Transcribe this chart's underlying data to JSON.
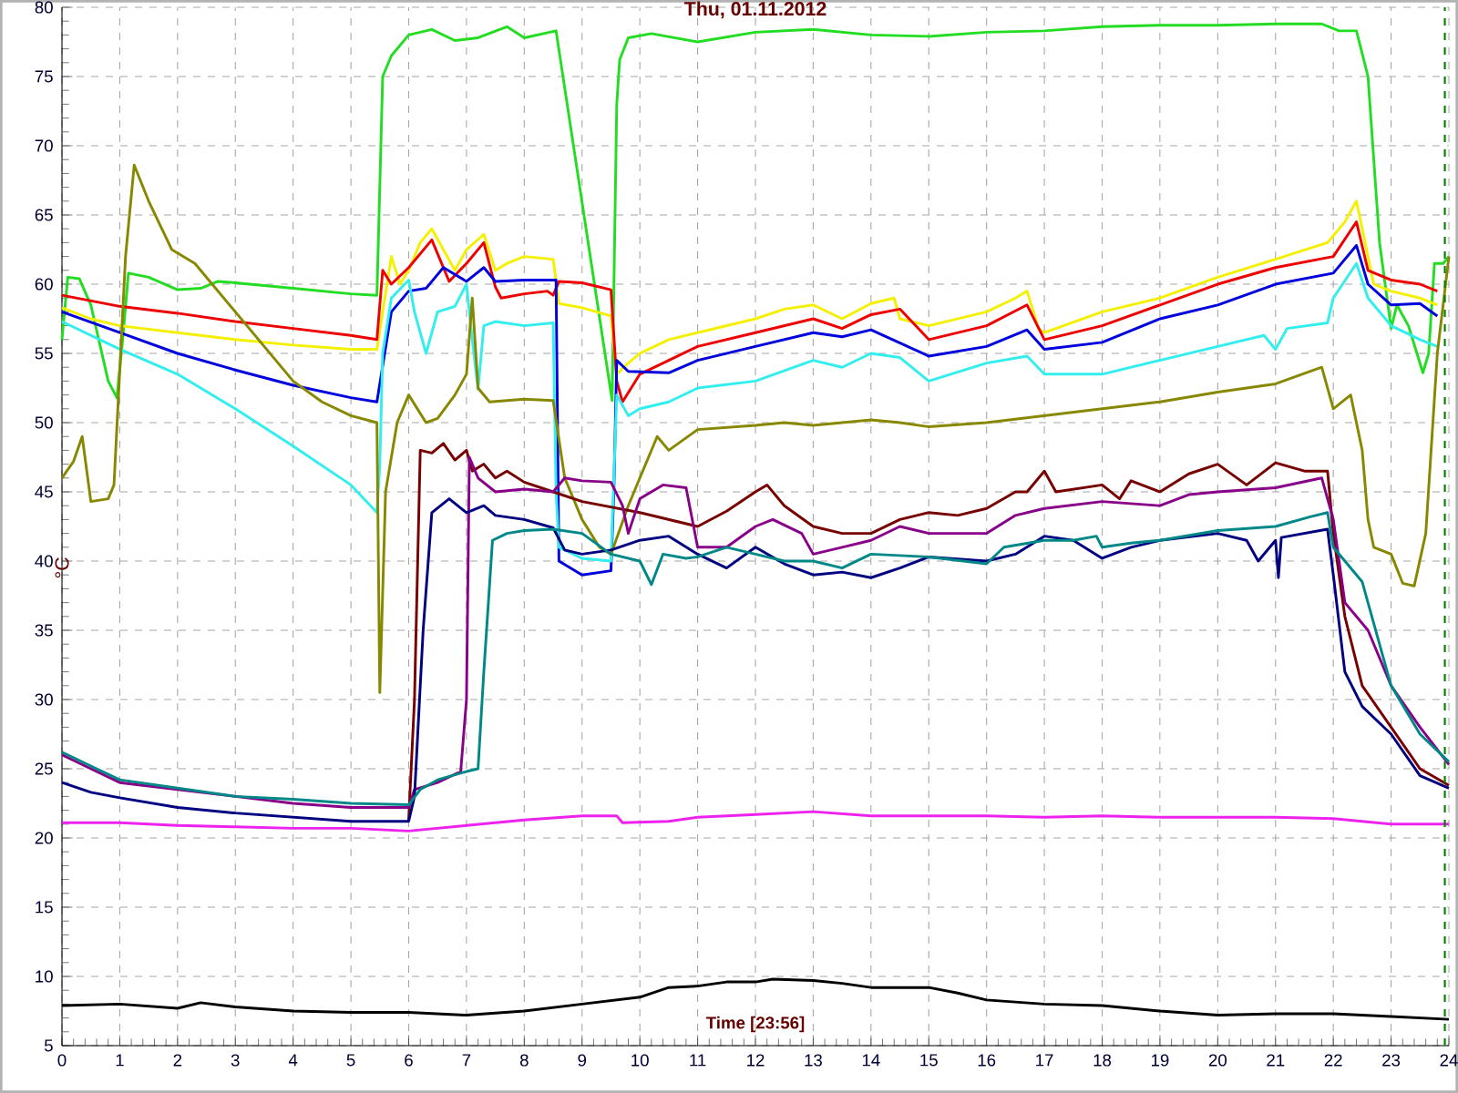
{
  "chart_data": {
    "type": "line",
    "title": "Thu, 01.11.2012",
    "xlabel": "Time [23:56]",
    "ylabel": "°C",
    "xlim": [
      0,
      24
    ],
    "ylim": [
      5,
      80
    ],
    "xticks": [
      0,
      1,
      2,
      3,
      4,
      5,
      6,
      7,
      8,
      9,
      10,
      11,
      12,
      13,
      14,
      15,
      16,
      17,
      18,
      19,
      20,
      21,
      22,
      23,
      24
    ],
    "yticks": [
      5,
      10,
      15,
      20,
      25,
      30,
      35,
      40,
      45,
      50,
      55,
      60,
      65,
      70,
      75,
      80
    ],
    "grid": true,
    "line_style": "solid",
    "marker": "none",
    "ref_lines": [
      {
        "axis": "x",
        "value": 23.93,
        "color": "#008000",
        "line_style": "dashed"
      }
    ],
    "series": [
      {
        "color": "#22dd22",
        "x": [
          0,
          0.1,
          0.3,
          0.5,
          0.8,
          0.95,
          1.05,
          1.15,
          1.5,
          2,
          2.4,
          2.7,
          3,
          4,
          5,
          5.45,
          5.55,
          5.7,
          6,
          6.4,
          6.8,
          7.2,
          7.7,
          8,
          8.55,
          9.52,
          9.6,
          9.65,
          9.8,
          10.2,
          11,
          12,
          13,
          14,
          15,
          16,
          17,
          18,
          19,
          20,
          21,
          21.8,
          22.1,
          22.4,
          22.6,
          22.8,
          23,
          23.1,
          23.3,
          23.55,
          23.65,
          23.75,
          23.9,
          24
        ],
        "values": [
          56,
          60.5,
          60.4,
          58.5,
          53,
          51.8,
          56,
          60.8,
          60.5,
          59.6,
          59.7,
          60.2,
          60.1,
          59.7,
          59.3,
          59.2,
          75,
          76.5,
          78,
          78.4,
          77.6,
          77.8,
          78.6,
          77.8,
          78.3,
          51.6,
          73,
          76.2,
          77.8,
          78.1,
          77.5,
          78.2,
          78.4,
          78,
          77.9,
          78.2,
          78.3,
          78.6,
          78.7,
          78.7,
          78.8,
          78.8,
          78.3,
          78.3,
          75,
          63,
          56.8,
          58.5,
          57,
          53.6,
          55,
          61.5,
          61.5,
          62
        ]
      },
      {
        "color": "#f5f000",
        "x": [
          0,
          0.5,
          1,
          2,
          3,
          4,
          5,
          5.45,
          5.55,
          5.7,
          5.85,
          6,
          6.2,
          6.4,
          6.6,
          6.8,
          7,
          7.3,
          7.5,
          7.7,
          8,
          8.5,
          8.6,
          9,
          9.5,
          9.6,
          9.8,
          10,
          10.5,
          11,
          12,
          12.5,
          13,
          13.5,
          14,
          14.4,
          14.5,
          15,
          16,
          16.5,
          16.7,
          16.9,
          17,
          18,
          19,
          20,
          21,
          21.9,
          22.2,
          22.4,
          22.7,
          23,
          23.5,
          23.8
        ],
        "values": [
          58.3,
          57.5,
          57,
          56.5,
          56,
          55.6,
          55.3,
          55.3,
          58,
          62,
          60,
          61,
          63,
          64,
          62.5,
          61,
          62.5,
          63.6,
          61,
          61.5,
          62,
          61.8,
          58.6,
          58.3,
          57.7,
          53.5,
          54.3,
          55,
          56,
          56.5,
          57.5,
          58.2,
          58.5,
          57.5,
          58.6,
          59,
          57.5,
          57,
          58,
          59,
          59.5,
          56.8,
          56.5,
          58,
          59,
          60.5,
          61.8,
          63,
          64.5,
          66,
          60,
          59.5,
          59,
          58.5
        ]
      },
      {
        "color": "#ee0000",
        "x": [
          0,
          1,
          2,
          3,
          4,
          5,
          5.45,
          5.55,
          5.7,
          6,
          6.4,
          6.7,
          7,
          7.3,
          7.5,
          7.6,
          8,
          8.4,
          8.5,
          8.6,
          9,
          9.5,
          9.6,
          9.7,
          10,
          10.5,
          11,
          12,
          13,
          13.5,
          14,
          14.5,
          15,
          16,
          16.7,
          17,
          18,
          19,
          20,
          21,
          22,
          22.4,
          22.6,
          23,
          23.5,
          23.8
        ],
        "values": [
          59.2,
          58.4,
          57.9,
          57.3,
          56.8,
          56.3,
          56,
          61,
          60,
          61.2,
          63.2,
          60.2,
          61.5,
          63,
          59.8,
          59,
          59.3,
          59.5,
          59.2,
          60.2,
          60.1,
          59.6,
          53,
          51.5,
          53.5,
          54.5,
          55.5,
          56.5,
          57.5,
          56.8,
          57.8,
          58.2,
          56,
          57,
          58.5,
          56,
          57,
          58.5,
          60,
          61.2,
          62,
          64.5,
          61,
          60.3,
          60,
          59.5
        ]
      },
      {
        "color": "#0000dd",
        "x": [
          0,
          1,
          2,
          3,
          4,
          5,
          5.45,
          5.7,
          6,
          6.3,
          6.6,
          7,
          7.3,
          7.5,
          8,
          8.55,
          8.6,
          9,
          9.5,
          9.55,
          9.6,
          9.8,
          10.5,
          11,
          12,
          13,
          13.5,
          14,
          15,
          16,
          16.7,
          17,
          18,
          19,
          20,
          21,
          22,
          22.4,
          22.6,
          23,
          23.5,
          23.8
        ],
        "values": [
          58,
          56.5,
          55,
          53.8,
          52.7,
          51.8,
          51.5,
          58,
          59.5,
          59.7,
          61.2,
          60.2,
          61.2,
          60.2,
          60.3,
          60.3,
          40,
          39,
          39.3,
          45,
          54.5,
          53.7,
          53.6,
          54.5,
          55.5,
          56.5,
          56.2,
          56.7,
          54.8,
          55.5,
          56.7,
          55.3,
          55.8,
          57.5,
          58.5,
          60,
          60.8,
          62.8,
          60,
          58.5,
          58.6,
          57.7
        ]
      },
      {
        "color": "#33eeee",
        "x": [
          0,
          1,
          2,
          3,
          4,
          5,
          5.45,
          5.5,
          5.55,
          5.7,
          6,
          6.1,
          6.3,
          6.5,
          6.8,
          7,
          7.1,
          7.2,
          7.3,
          7.5,
          8,
          8.5,
          8.55,
          8.6,
          9,
          9.5,
          9.6,
          9.8,
          10,
          10.5,
          11,
          12,
          13,
          13.5,
          14,
          14.5,
          15,
          16,
          16.7,
          17,
          18,
          19,
          20,
          20.8,
          21,
          21.2,
          21.9,
          22,
          22.4,
          22.6,
          23,
          23.5,
          23.8
        ],
        "values": [
          57.3,
          55.3,
          53.5,
          51,
          48.3,
          45.5,
          43.5,
          47,
          55,
          59,
          60.3,
          58,
          55,
          58,
          58.4,
          60,
          56,
          52.4,
          57,
          57.3,
          57,
          57.2,
          45,
          41,
          40.2,
          40,
          52,
          50.5,
          51,
          51.5,
          52.5,
          53,
          54.5,
          54,
          55,
          54.7,
          53,
          54.3,
          54.8,
          53.5,
          53.5,
          54.5,
          55.5,
          56.3,
          55.3,
          56.8,
          57.2,
          59,
          61.5,
          59,
          57,
          56,
          55.5
        ]
      },
      {
        "color": "#888800",
        "x": [
          0,
          0.2,
          0.35,
          0.5,
          0.8,
          0.9,
          1.1,
          1.25,
          1.5,
          1.9,
          2.3,
          3,
          4,
          4.5,
          5,
          5.45,
          5.5,
          5.6,
          5.8,
          6,
          6.3,
          6.5,
          6.8,
          7,
          7.1,
          7.2,
          7.4,
          8,
          8.5,
          8.7,
          9,
          9.3,
          9.5,
          9.8,
          10,
          10.3,
          10.5,
          11,
          12,
          12.5,
          13,
          14,
          14.5,
          15,
          16,
          17,
          18,
          19,
          20,
          21,
          21.8,
          22,
          22.3,
          22.5,
          22.6,
          22.7,
          23,
          23.2,
          23.4,
          23.6,
          23.8,
          24
        ],
        "values": [
          46,
          47.2,
          49,
          44.3,
          44.5,
          45.5,
          62,
          68.6,
          66,
          62.5,
          61.5,
          58,
          53,
          51.5,
          50.5,
          50,
          30.5,
          45,
          50,
          52,
          50,
          50.3,
          52,
          53.5,
          59,
          52.5,
          51.5,
          51.7,
          51.6,
          46,
          43,
          41,
          40.5,
          44,
          46,
          49,
          48,
          49.5,
          49.8,
          50,
          49.8,
          50.2,
          50,
          49.7,
          50,
          50.5,
          51,
          51.5,
          52.2,
          52.8,
          54,
          51,
          52,
          48,
          43,
          41,
          40.5,
          38.4,
          38.2,
          42,
          55,
          62
        ]
      },
      {
        "color": "#770000",
        "x": [
          6,
          6.1,
          6.2,
          6.4,
          6.6,
          6.8,
          7,
          7.1,
          7.3,
          7.5,
          7.7,
          8,
          8.5,
          9,
          10,
          11,
          11.5,
          12,
          12.2,
          12.5,
          13,
          13.5,
          14,
          14.5,
          15,
          15.5,
          16,
          16.5,
          16.7,
          17,
          17.2,
          18,
          18.3,
          18.5,
          19,
          19.5,
          20,
          20.5,
          21,
          21.5,
          21.9,
          22,
          22.2,
          22.5,
          23,
          23.5,
          24
        ],
        "values": [
          21.3,
          30,
          48,
          47.8,
          48.5,
          47.3,
          48,
          46.5,
          47,
          46,
          46.5,
          45.7,
          45,
          44.3,
          43.5,
          42.5,
          43.6,
          45,
          45.5,
          44,
          42.5,
          42,
          42,
          43,
          43.5,
          43.3,
          43.8,
          45,
          45,
          46.5,
          45,
          45.5,
          44.5,
          45.8,
          45,
          46.3,
          47,
          45.5,
          47.1,
          46.5,
          46.5,
          42,
          36,
          31,
          28,
          25,
          23.8
        ]
      },
      {
        "color": "#880088",
        "x": [
          0,
          0.5,
          1,
          2,
          3,
          4,
          5,
          6,
          6.1,
          6.5,
          6.9,
          7,
          7.05,
          7.2,
          7.5,
          8,
          8.5,
          8.7,
          9,
          9.5,
          9.7,
          9.8,
          10,
          10.4,
          10.8,
          11,
          11.5,
          12,
          12.3,
          12.8,
          13,
          13.5,
          14,
          14.5,
          15,
          16,
          16.5,
          17,
          18,
          19,
          19.5,
          20,
          21,
          21.8,
          22,
          22.2,
          22.6,
          23,
          23.5,
          24
        ],
        "values": [
          26,
          25,
          24,
          23.5,
          23,
          22.5,
          22.2,
          22.2,
          23.5,
          24,
          24.8,
          30,
          47.5,
          46,
          45,
          45.2,
          45,
          46,
          45.8,
          45.7,
          44,
          42,
          44.5,
          45.5,
          45.3,
          41,
          41,
          42.5,
          43,
          42,
          40.5,
          41,
          41.5,
          42.5,
          42,
          42,
          43.3,
          43.8,
          44.3,
          44,
          44.8,
          45,
          45.3,
          46,
          43,
          37,
          35,
          31,
          28,
          25.3
        ]
      },
      {
        "color": "#000080",
        "x": [
          0,
          0.5,
          1,
          2,
          3,
          4,
          5,
          6,
          6.1,
          6.25,
          6.4,
          6.7,
          7,
          7.3,
          7.5,
          8,
          8.5,
          8.7,
          9,
          9.5,
          10,
          10.5,
          11,
          11.5,
          12,
          12.5,
          13,
          13.5,
          14,
          14.5,
          15,
          16,
          16.5,
          17,
          17.5,
          18,
          18.5,
          19,
          20,
          20.5,
          20.7,
          21,
          21.05,
          21.1,
          21.5,
          21.9,
          22,
          22.2,
          22.5,
          23,
          23.5,
          24
        ],
        "values": [
          24,
          23.3,
          22.9,
          22.2,
          21.8,
          21.5,
          21.2,
          21.2,
          23,
          35,
          43.5,
          44.5,
          43.5,
          44,
          43.3,
          43,
          42.4,
          40.8,
          40.5,
          40.8,
          41.5,
          41.8,
          40.5,
          39.5,
          41,
          39.8,
          39,
          39.2,
          38.8,
          39.5,
          40.3,
          40,
          40.5,
          41.8,
          41.5,
          40.2,
          41,
          41.5,
          42,
          41.5,
          40,
          41.5,
          38.8,
          41.7,
          42,
          42.3,
          39,
          32,
          29.5,
          27.5,
          24.5,
          23.6
        ]
      },
      {
        "color": "#008888",
        "x": [
          0,
          0.5,
          1,
          2,
          3,
          4,
          5,
          6,
          6.2,
          6.5,
          7,
          7.2,
          7.3,
          7.45,
          7.7,
          8,
          8.5,
          9,
          9.5,
          10,
          10.2,
          10.4,
          10.8,
          11,
          11.5,
          12,
          12.5,
          13,
          13.5,
          14,
          15,
          16,
          16.3,
          17,
          17.5,
          17.9,
          18,
          18.5,
          19,
          20,
          21,
          21.6,
          21.9,
          22,
          22.5,
          23,
          23.5,
          24
        ],
        "values": [
          26.2,
          25.2,
          24.2,
          23.6,
          23,
          22.8,
          22.5,
          22.4,
          23.5,
          24.2,
          24.8,
          25,
          32,
          41.5,
          42,
          42.2,
          42.3,
          42,
          40.5,
          40,
          38.3,
          40.5,
          40.2,
          40.3,
          41,
          40.5,
          40,
          40,
          39.5,
          40.5,
          40.3,
          39.8,
          41,
          41.5,
          41.5,
          41.8,
          41,
          41.3,
          41.5,
          42.2,
          42.5,
          43.2,
          43.5,
          41,
          38.5,
          31,
          27.5,
          25.5
        ]
      },
      {
        "color": "#ee22ee",
        "x": [
          0,
          1,
          2,
          3,
          4,
          5,
          6,
          7,
          8,
          9,
          9.6,
          9.7,
          10.5,
          11,
          12,
          13,
          14,
          15,
          16,
          17,
          18,
          19,
          20,
          21,
          22,
          23,
          24
        ],
        "values": [
          21.1,
          21.1,
          20.9,
          20.8,
          20.7,
          20.7,
          20.5,
          20.9,
          21.3,
          21.6,
          21.6,
          21.1,
          21.2,
          21.5,
          21.7,
          21.9,
          21.6,
          21.6,
          21.6,
          21.5,
          21.6,
          21.5,
          21.5,
          21.5,
          21.4,
          21,
          21
        ]
      },
      {
        "color": "#000000",
        "x": [
          0,
          1,
          2,
          2.4,
          3,
          4,
          5,
          6,
          7,
          8,
          9,
          10,
          10.5,
          11,
          11.5,
          12,
          12.3,
          13,
          13.5,
          14,
          15,
          15.5,
          16,
          17,
          18,
          19,
          20,
          21,
          22,
          23,
          24
        ],
        "values": [
          7.9,
          8,
          7.7,
          8.1,
          7.8,
          7.5,
          7.4,
          7.4,
          7.2,
          7.5,
          8,
          8.5,
          9.2,
          9.3,
          9.6,
          9.6,
          9.8,
          9.7,
          9.5,
          9.2,
          9.2,
          8.8,
          8.3,
          8,
          7.9,
          7.5,
          7.2,
          7.3,
          7.3,
          7.1,
          6.9
        ]
      }
    ]
  }
}
